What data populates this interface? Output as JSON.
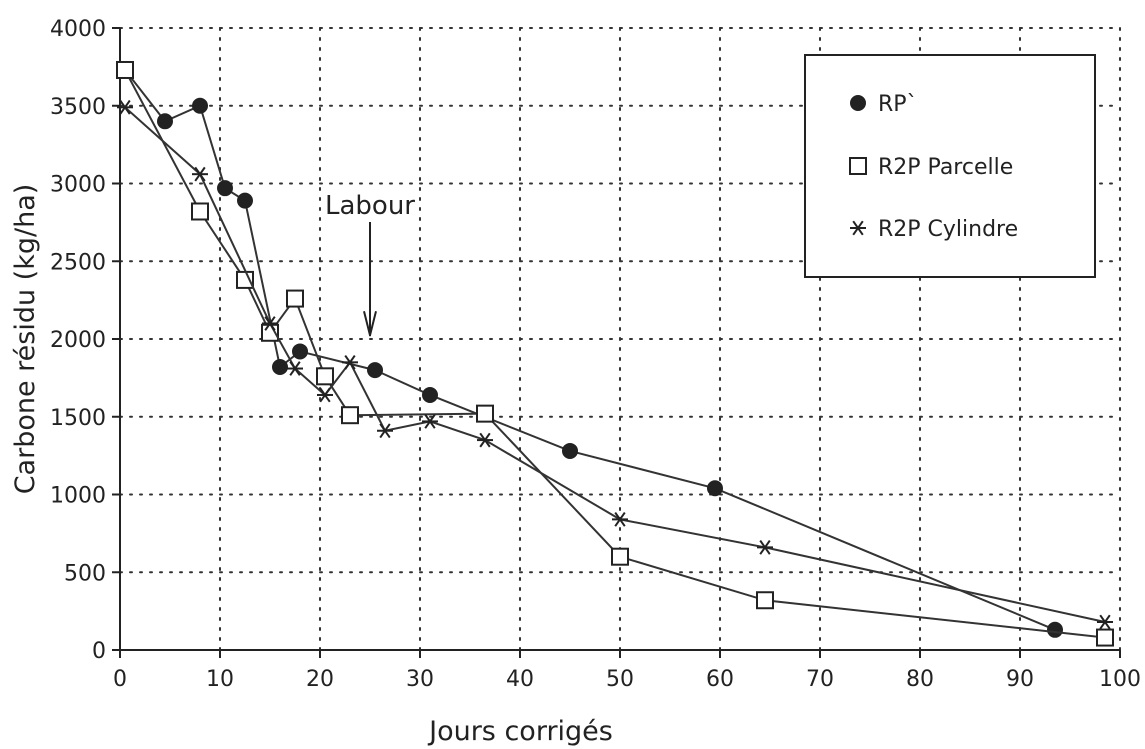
{
  "chart_data": {
    "type": "line",
    "xlabel": "Jours corrigés",
    "ylabel": "Carbone résidu (kg/ha)",
    "xlim": [
      0,
      100
    ],
    "ylim": [
      0,
      4000
    ],
    "x_ticks": [
      0,
      10,
      20,
      30,
      40,
      50,
      60,
      70,
      80,
      90,
      100
    ],
    "y_ticks": [
      0,
      500,
      1000,
      1500,
      2000,
      2500,
      3000,
      3500,
      4000
    ],
    "grid": true,
    "grid_style": "dotted",
    "legend_position": "top-right",
    "series": [
      {
        "name": "RP`",
        "marker": "filled-circle",
        "x": [
          0.5,
          4.5,
          8,
          10.5,
          12.5,
          16,
          18,
          25.5,
          31,
          45,
          59.5,
          93.5
        ],
        "y": [
          3730,
          3400,
          3500,
          2970,
          2890,
          1820,
          1920,
          1800,
          1640,
          1280,
          1040,
          130
        ]
      },
      {
        "name": "R2P Parcelle",
        "marker": "open-square",
        "x": [
          0.5,
          8,
          12.5,
          15,
          17.5,
          20.5,
          23,
          36.5,
          50,
          64.5,
          98.5
        ],
        "y": [
          3730,
          2820,
          2380,
          2040,
          2260,
          1760,
          1510,
          1520,
          600,
          320,
          80
        ]
      },
      {
        "name": "R2P Cylindre",
        "marker": "asterisk",
        "x": [
          0.5,
          8,
          15,
          17.5,
          20.5,
          23,
          26.5,
          31,
          36.5,
          50,
          64.5,
          98.5
        ],
        "y": [
          3490,
          3060,
          2100,
          1810,
          1640,
          1850,
          1410,
          1470,
          1350,
          840,
          660,
          180
        ]
      }
    ],
    "annotations": [
      {
        "text": "Labour",
        "x": 25,
        "y": 2050,
        "arrow": "down"
      }
    ]
  }
}
